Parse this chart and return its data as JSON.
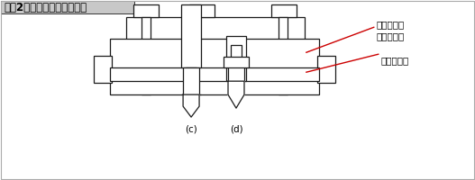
{
  "title": "【図2】ストリッパの安定化",
  "title_bg": "#c8c8c8",
  "bg_color": "#ffffff",
  "border_color": "#aaaaaa",
  "line_color": "#1a1a1a",
  "red_color": "#cc0000",
  "label_stripper_guide": "ストリッパ\nガイドピン",
  "label_stripper": "ストリッパ",
  "label_c": "(c)",
  "label_d": "(d)",
  "text_fontsize": 7.5,
  "title_fontsize": 8.5
}
